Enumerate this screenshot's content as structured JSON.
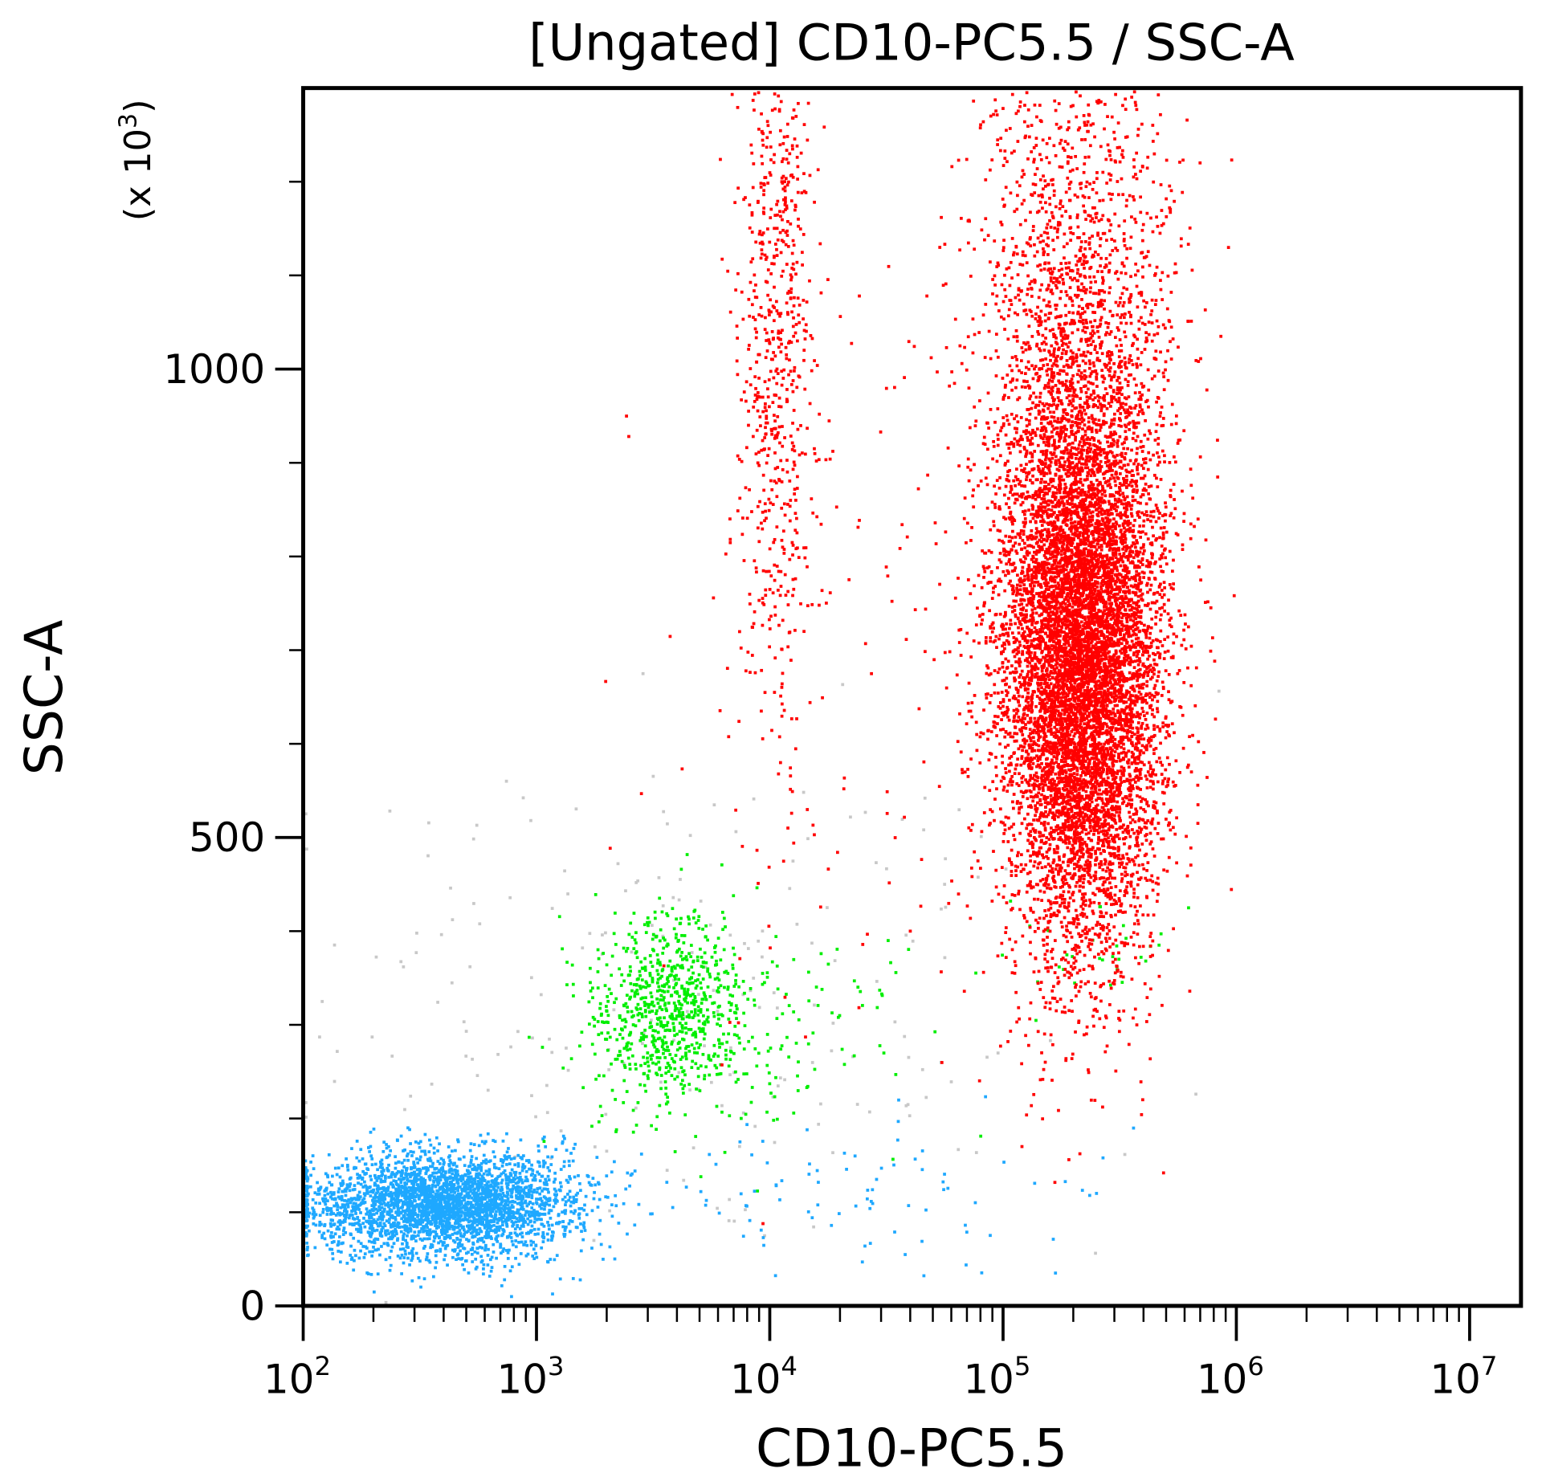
{
  "chart_data": {
    "type": "scatter",
    "title": "[Ungated] CD10-PC5.5 / SSC-A",
    "xlabel": "CD10-PC5.5",
    "ylabel": "SSC-A",
    "y_multiplier_label": "(x 10",
    "y_multiplier_exp": "3",
    "y_multiplier_close": ")",
    "x_scale": "log",
    "xlim": [
      100,
      16600000
    ],
    "ylim": [
      0,
      1300
    ],
    "x_ticks": [
      {
        "base": "10",
        "exp": "2",
        "value": 100
      },
      {
        "base": "10",
        "exp": "3",
        "value": 1000
      },
      {
        "base": "10",
        "exp": "4",
        "value": 10000
      },
      {
        "base": "10",
        "exp": "5",
        "value": 100000
      },
      {
        "base": "10",
        "exp": "6",
        "value": 1000000
      },
      {
        "base": "10",
        "exp": "7",
        "value": 10000000
      }
    ],
    "y_ticks": [
      {
        "label": "0",
        "value": 0
      },
      {
        "label": "500",
        "value": 500
      },
      {
        "label": "1000",
        "value": 1000
      }
    ],
    "grid": false,
    "populations": [
      {
        "color": "#c8c8c8",
        "count": 220,
        "x_log_center": 3.6,
        "x_log_sd": 0.8,
        "y_center": 330,
        "y_sd": 140
      },
      {
        "color": "#1ea8ff",
        "count": 3200,
        "x_log_center": 2.6,
        "x_log_sd": 0.28,
        "y_center": 110,
        "y_sd": 28
      },
      {
        "color": "#1ea8ff",
        "count": 90,
        "x_log_center": 4.4,
        "x_log_sd": 0.6,
        "y_center": 120,
        "y_sd": 40
      },
      {
        "color": "#00ee00",
        "count": 750,
        "x_log_center": 3.55,
        "x_log_sd": 0.16,
        "y_center": 320,
        "y_sd": 50
      },
      {
        "color": "#00ee00",
        "count": 140,
        "x_log_center": 4.0,
        "x_log_sd": 0.35,
        "y_center": 300,
        "y_sd": 60
      },
      {
        "color": "#00ee00",
        "count": 30,
        "x_log_center": 5.4,
        "x_log_sd": 0.15,
        "y_center": 380,
        "y_sd": 25
      },
      {
        "color": "#ff0000",
        "count": 9000,
        "x_log_center": 5.33,
        "x_log_sd": 0.17,
        "y_center": 690,
        "y_sd": 150
      },
      {
        "color": "#ff0000",
        "count": 1800,
        "x_log_center": 5.3,
        "x_log_sd": 0.22,
        "y_center": 1050,
        "y_sd": 170
      },
      {
        "color": "#ff0000",
        "count": 700,
        "x_log_center": 4.02,
        "x_log_sd": 0.08,
        "y_center": 1050,
        "y_sd": 220
      },
      {
        "color": "#ff0000",
        "count": 120,
        "x_log_center": 4.4,
        "x_log_sd": 0.5,
        "y_center": 650,
        "y_sd": 250
      }
    ]
  }
}
